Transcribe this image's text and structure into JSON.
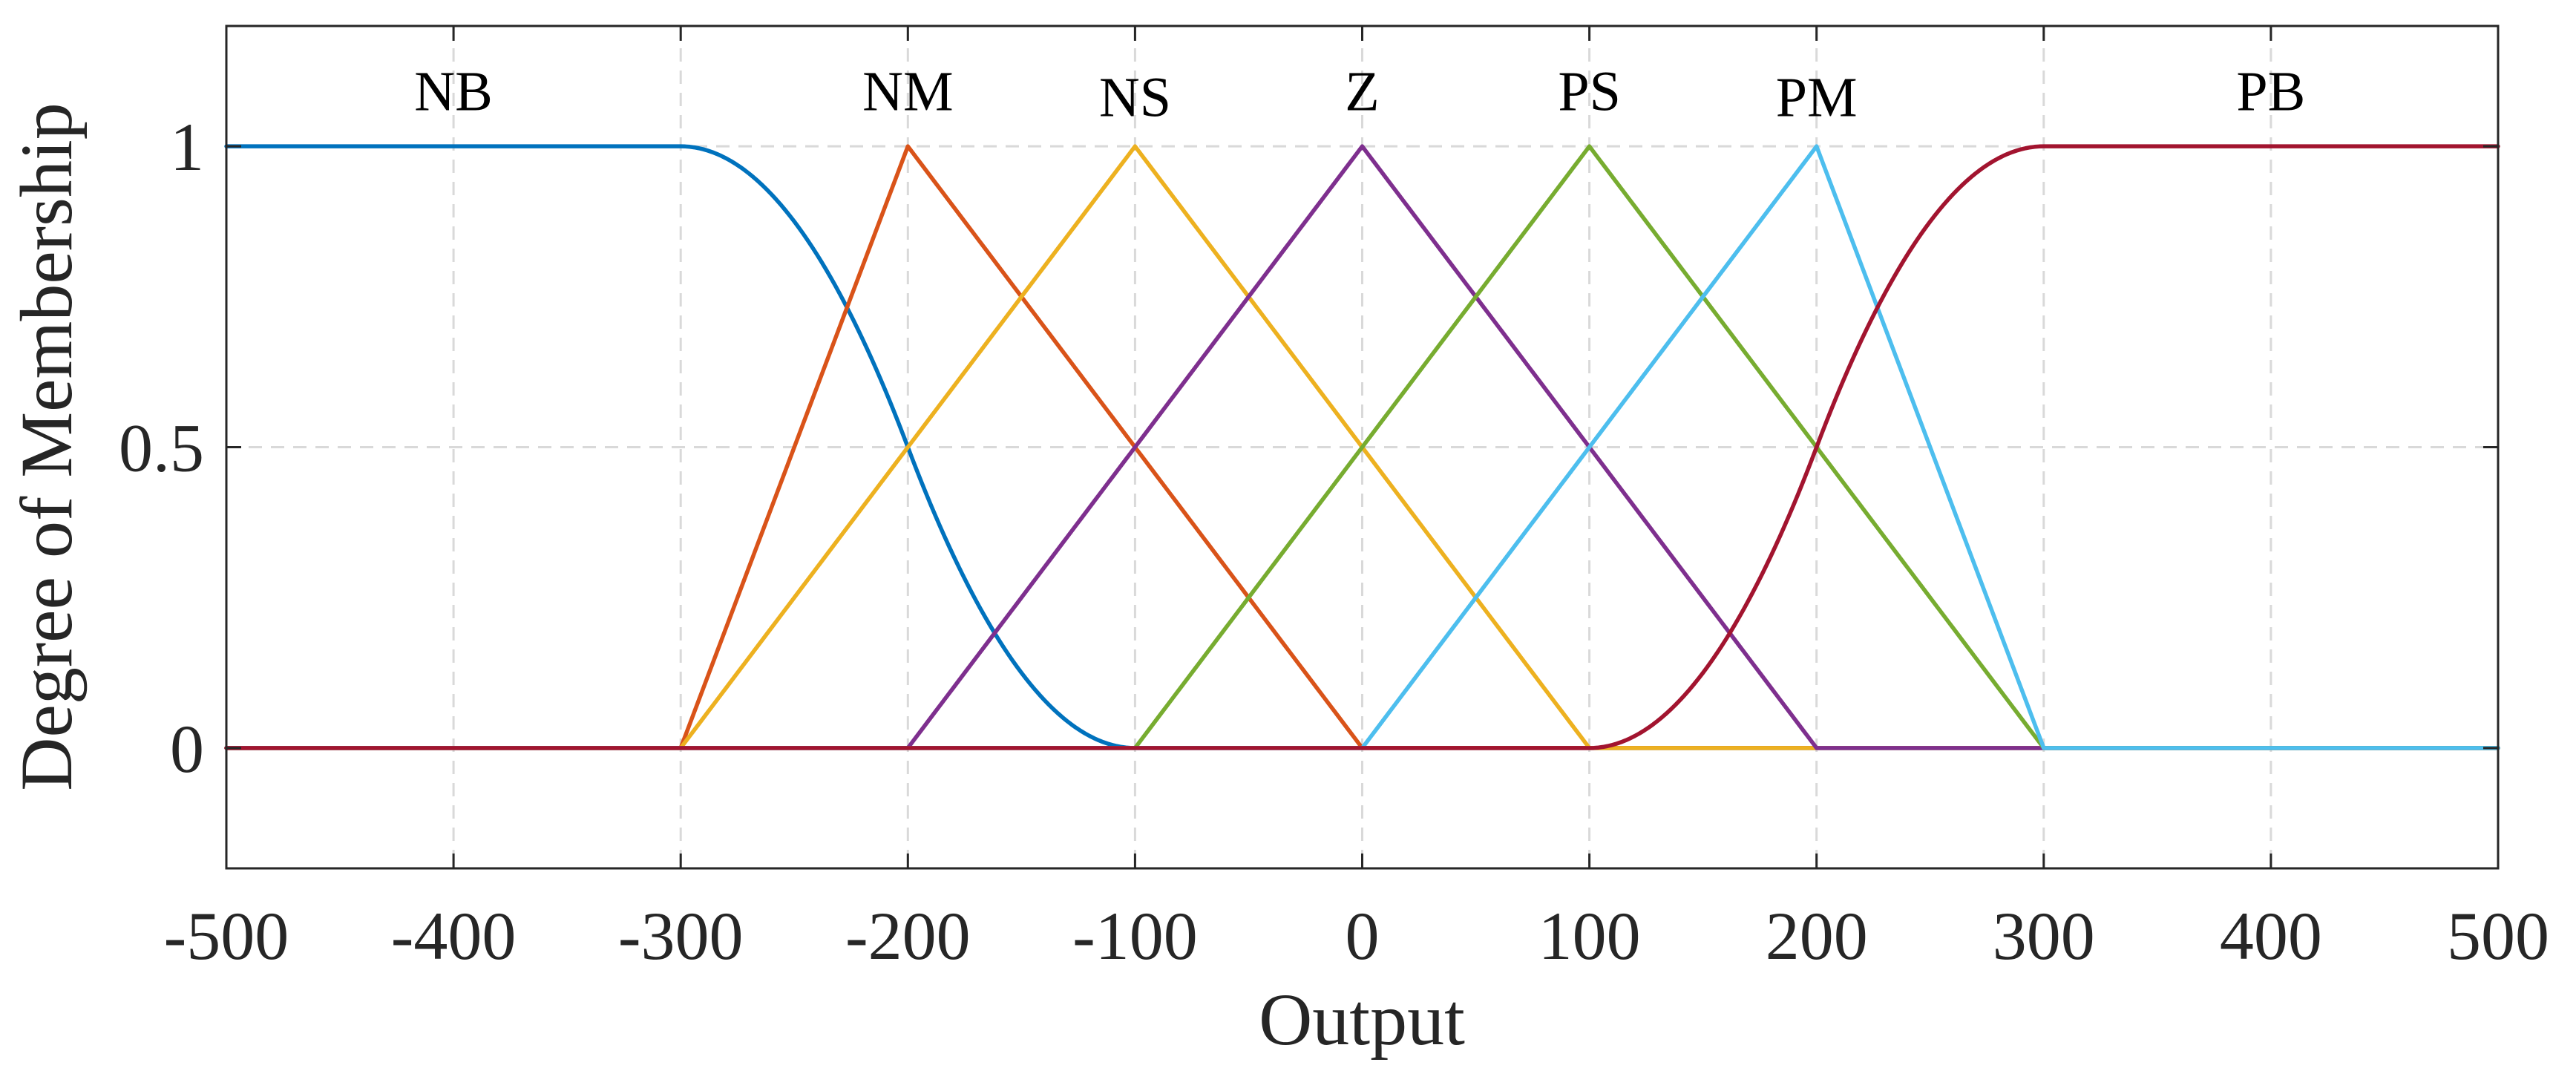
{
  "chart_data": {
    "type": "line",
    "title": "",
    "xlabel": "Output",
    "ylabel": "Degree of Membership",
    "xlim": [
      -500,
      500
    ],
    "ylim": [
      -0.2,
      1.2
    ],
    "xticks": [
      -500,
      -400,
      -300,
      -200,
      -100,
      0,
      100,
      200,
      300,
      400,
      500
    ],
    "xtick_labels": [
      "-500",
      "-400",
      "-300",
      "-200",
      "-100",
      "0",
      "100",
      "200",
      "300",
      "400",
      "500"
    ],
    "yticks": [
      0,
      0.5,
      1
    ],
    "ytick_labels": [
      "0",
      "0.5",
      "1"
    ],
    "grid": true,
    "series": [
      {
        "name": "NB",
        "label_at": [
          -400,
          1.06
        ],
        "shape": "zmf",
        "params": [
          -300,
          -100
        ],
        "color": "#0072BD"
      },
      {
        "name": "NM",
        "label_at": [
          -200,
          1.06
        ],
        "shape": "trimf",
        "params": [
          -300,
          -200,
          0
        ],
        "color": "#D95319"
      },
      {
        "name": "NS",
        "label_at": [
          -100,
          1.05
        ],
        "shape": "trimf",
        "params": [
          -300,
          -100,
          100
        ],
        "color": "#EDB120"
      },
      {
        "name": "Z",
        "label_at": [
          0,
          1.06
        ],
        "shape": "trimf",
        "params": [
          -200,
          0,
          200
        ],
        "color": "#7E2F8E"
      },
      {
        "name": "PS",
        "label_at": [
          100,
          1.06
        ],
        "shape": "trimf",
        "params": [
          -100,
          100,
          300
        ],
        "color": "#77AC30"
      },
      {
        "name": "PM",
        "label_at": [
          200,
          1.05
        ],
        "shape": "trimf",
        "params": [
          0,
          200,
          300
        ],
        "color": "#4DBEEE"
      },
      {
        "name": "PB",
        "label_at": [
          400,
          1.06
        ],
        "shape": "smf",
        "params": [
          100,
          300
        ],
        "color": "#A2142F"
      }
    ]
  }
}
